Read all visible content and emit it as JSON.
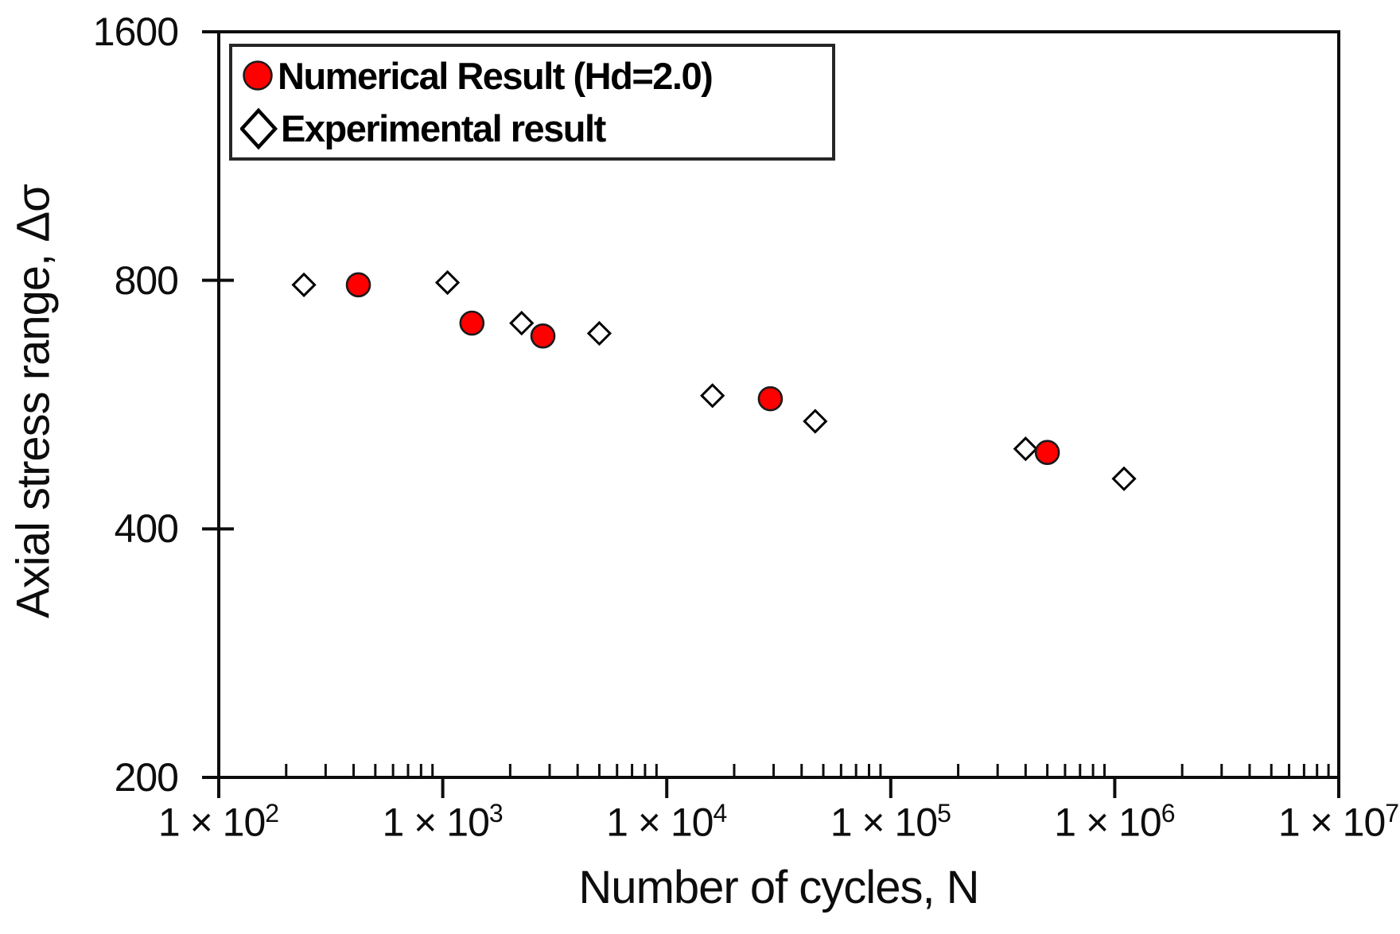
{
  "colors": {
    "marker_red": "#ff0000",
    "marker_outline": "#1a1a1a",
    "axis": "#0d0d0d",
    "background": "#ffffff"
  },
  "chart_data": {
    "type": "scatter",
    "title": "",
    "xlabel": "Number of cycles, N",
    "ylabel": "Axial stress range, Δσ",
    "x_scale": "log10",
    "y_scale": "log2",
    "xlim": [
      100,
      10000000
    ],
    "ylim": [
      200,
      1600
    ],
    "grid": false,
    "legend_position": "inside top-left",
    "x_ticks": [
      {
        "value": 100,
        "base": "1 × 10",
        "exponent": "2"
      },
      {
        "value": 1000,
        "base": "1 × 10",
        "exponent": "3"
      },
      {
        "value": 10000,
        "base": "1 × 10",
        "exponent": "4"
      },
      {
        "value": 100000,
        "base": "1 × 10",
        "exponent": "5"
      },
      {
        "value": 1000000,
        "base": "1 × 10",
        "exponent": "6"
      },
      {
        "value": 10000000,
        "base": "1 × 10",
        "exponent": "7"
      }
    ],
    "y_ticks": [
      1600,
      800,
      400,
      200
    ],
    "series": [
      {
        "name": "Numerical Result (Hd=2.0)",
        "marker": "circle",
        "fill": "#ff0000",
        "stroke": "#1a1a1a",
        "points": [
          {
            "N": 420,
            "stress": 790
          },
          {
            "N": 1350,
            "stress": 710
          },
          {
            "N": 2800,
            "stress": 685
          },
          {
            "N": 29000,
            "stress": 575
          },
          {
            "N": 500000,
            "stress": 495
          }
        ]
      },
      {
        "name": "Experimental result",
        "marker": "diamond",
        "fill": "#ffffff",
        "stroke": "#000000",
        "points": [
          {
            "N": 240,
            "stress": 790
          },
          {
            "N": 1050,
            "stress": 795
          },
          {
            "N": 2250,
            "stress": 710
          },
          {
            "N": 5000,
            "stress": 690
          },
          {
            "N": 16000,
            "stress": 580
          },
          {
            "N": 46000,
            "stress": 540
          },
          {
            "N": 400000,
            "stress": 500
          },
          {
            "N": 1100000,
            "stress": 460
          }
        ]
      }
    ]
  }
}
